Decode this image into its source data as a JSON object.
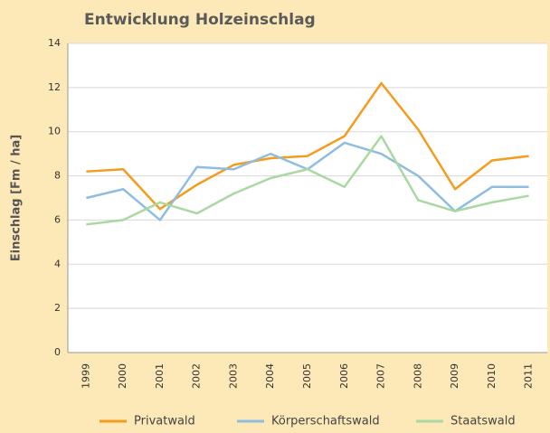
{
  "chart_data": {
    "type": "line",
    "title": "Entwicklung Holzeinschlag",
    "y_label": "Einschlag [Fm / ha]",
    "categories": [
      "1999",
      "2000",
      "2001",
      "2002",
      "2003",
      "2004",
      "2005",
      "2006",
      "2007",
      "2008",
      "2009",
      "2010",
      "2011"
    ],
    "series": [
      {
        "name": "Privatwald",
        "color": "#f39c1e",
        "values": [
          8.2,
          8.3,
          6.5,
          7.6,
          8.5,
          8.8,
          8.9,
          9.8,
          12.2,
          10.1,
          7.4,
          8.7,
          8.9
        ]
      },
      {
        "name": "Körperschaftswald",
        "color": "#8fbde0",
        "values": [
          7.0,
          7.4,
          6.0,
          8.4,
          8.3,
          9.0,
          8.3,
          9.5,
          9.0,
          8.0,
          6.4,
          7.5,
          7.5
        ]
      },
      {
        "name": "Staatswald",
        "color": "#a9d9a0",
        "values": [
          5.8,
          6.0,
          6.8,
          6.3,
          7.2,
          7.9,
          8.3,
          7.5,
          9.8,
          6.9,
          6.4,
          6.8,
          7.1
        ]
      }
    ],
    "ylim": [
      0,
      14
    ],
    "yticks": [
      0,
      2,
      4,
      6,
      8,
      10,
      12,
      14
    ],
    "grid": true,
    "legend": "bottom"
  }
}
